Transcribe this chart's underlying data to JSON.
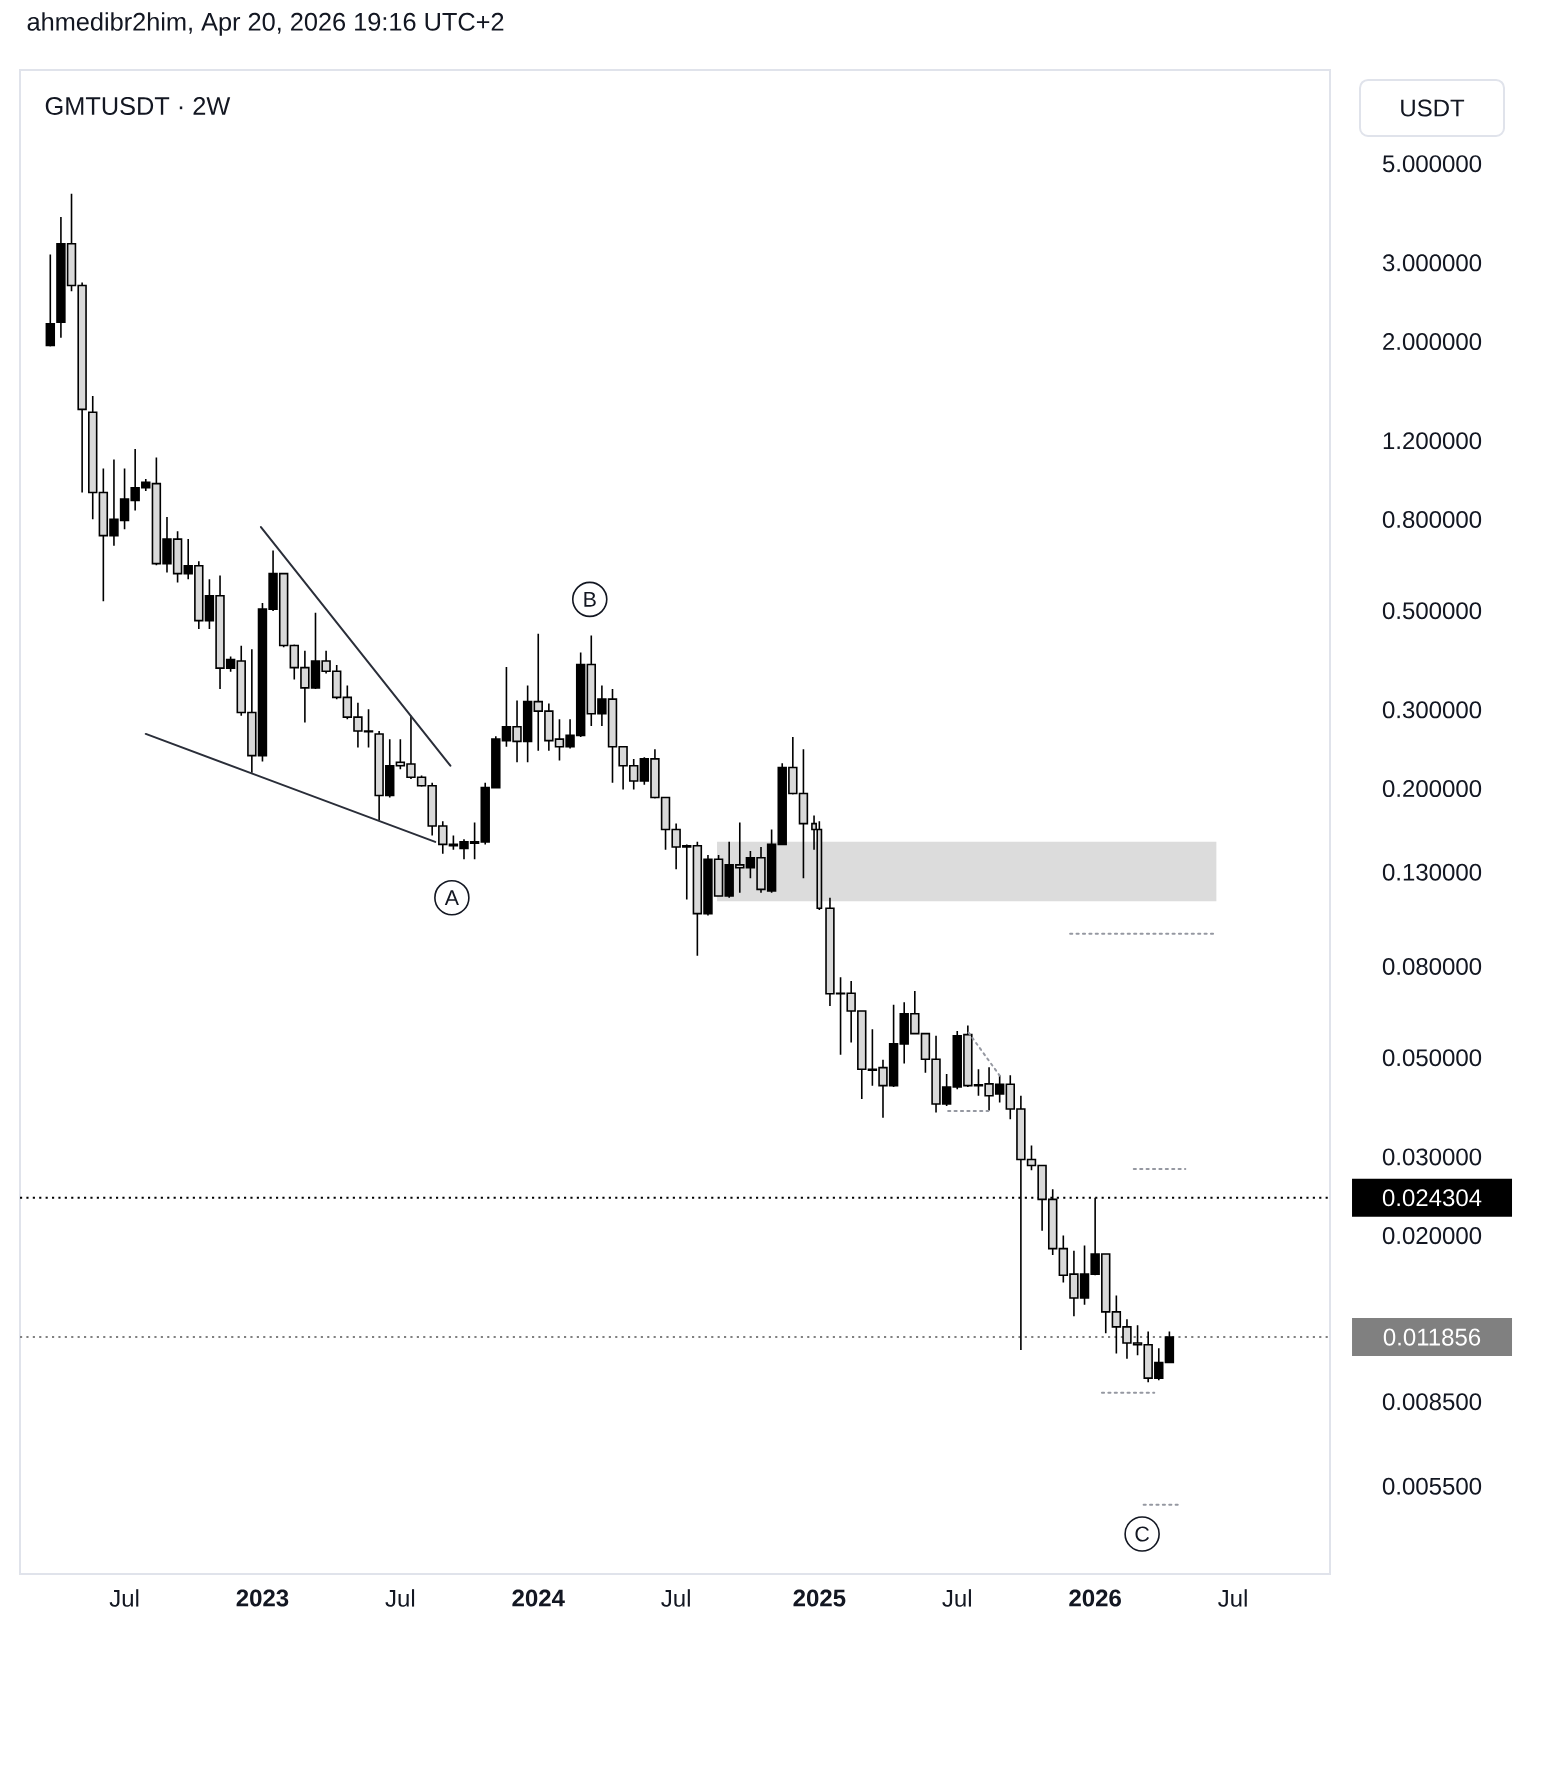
{
  "chart_data": {
    "type": "candlestick",
    "title": "GMTUSDT · 2W",
    "ylabel": "USDT",
    "annotations": [
      "ahmedibr2him, Apr 20, 2026 19:16 UTC+2",
      {
        "text": "A",
        "x": "2023-09-09",
        "y": 0.114
      },
      {
        "text": "B",
        "x": "2024-03-09",
        "y": 0.53
      },
      {
        "text": "C",
        "x": "2026-03-08",
        "y": 0.0043
      }
    ],
    "log": true,
    "xlim": [
      "2022-02-16",
      "2026-11-11"
    ],
    "xticks": [
      {
        "value": "2022-07-04",
        "label": "Jul"
      },
      {
        "value": "2023-01-02",
        "label": "2023"
      },
      {
        "value": "2023-07-03",
        "label": "Jul"
      },
      {
        "value": "2024-01-01",
        "label": "2024"
      },
      {
        "value": "2024-07-01",
        "label": "Jul"
      },
      {
        "value": "2025-01-06",
        "label": "2025"
      },
      {
        "value": "2025-07-07",
        "label": "Jul"
      },
      {
        "value": "2026-01-05",
        "label": "2026"
      },
      {
        "value": "2026-07-06",
        "label": "Jul"
      }
    ],
    "ylim": [
      0.0035,
      8.1
    ],
    "yticks": [
      {
        "value": 5,
        "label": "5.000000"
      },
      {
        "value": 3,
        "label": "3.000000"
      },
      {
        "value": 2,
        "label": "2.000000"
      },
      {
        "value": 1.2,
        "label": "1.200000"
      },
      {
        "value": 0.8,
        "label": "0.800000"
      },
      {
        "value": 0.5,
        "label": "0.500000"
      },
      {
        "value": 0.3,
        "label": "0.300000"
      },
      {
        "value": 0.2,
        "label": "0.200000"
      },
      {
        "value": 0.13,
        "label": "0.130000"
      },
      {
        "value": 0.08,
        "label": "0.080000"
      },
      {
        "value": 0.05,
        "label": "0.050000"
      },
      {
        "value": 0.03,
        "label": "0.030000"
      },
      {
        "value": 0.02,
        "label": "0.020000"
      },
      {
        "value": 0.0085,
        "label": "0.008500"
      },
      {
        "value": 0.0055,
        "label": "0.005500"
      }
    ],
    "ref_lines": [
      {
        "axis": "y",
        "value": 0.024304,
        "label": "0.024304",
        "color": "#000000",
        "line_style": "dotted"
      },
      {
        "axis": "y",
        "value": 0.011856,
        "label": "0.011856",
        "color": "#808080",
        "line_style": "dotted"
      }
    ],
    "series": [
      {
        "type": "area",
        "x": [
          "2024-08-24",
          "2026-06-14"
        ],
        "values": [
          null,
          null
        ],
        "lower": [
          0.112,
          0.112
        ],
        "upper": [
          0.152,
          0.152
        ],
        "color": "#dcdcdc"
      },
      {
        "color": "#000000",
        "x": [
          "2022-03-28",
          "2022-04-11",
          "2022-04-25",
          "2022-05-09",
          "2022-05-23",
          "2022-06-06",
          "2022-06-20",
          "2022-07-04",
          "2022-07-18",
          "2022-08-01",
          "2022-08-15",
          "2022-08-29",
          "2022-09-12",
          "2022-09-26",
          "2022-10-10",
          "2022-10-24",
          "2022-11-07",
          "2022-11-21",
          "2022-12-05",
          "2022-12-19",
          "2023-01-02",
          "2023-01-16",
          "2023-01-30",
          "2023-02-13",
          "2023-02-27",
          "2023-03-13",
          "2023-03-27",
          "2023-04-10",
          "2023-04-24",
          "2023-05-08",
          "2023-05-22",
          "2023-06-05",
          "2023-06-19",
          "2023-07-03",
          "2023-07-17",
          "2023-07-31",
          "2023-08-14",
          "2023-08-28",
          "2023-09-11",
          "2023-09-25",
          "2023-10-09",
          "2023-10-23",
          "2023-11-06",
          "2023-11-20",
          "2023-12-04",
          "2023-12-18",
          "2024-01-01",
          "2024-01-15",
          "2024-01-29",
          "2024-02-12",
          "2024-02-26",
          "2024-03-11",
          "2024-03-25",
          "2024-04-08",
          "2024-04-22",
          "2024-05-06",
          "2024-05-20",
          "2024-06-03",
          "2024-06-17",
          "2024-07-01",
          "2024-07-15",
          "2024-07-29",
          "2024-08-12",
          "2024-08-26",
          "2024-09-09",
          "2024-09-23",
          "2024-10-07",
          "2024-10-21",
          "2024-11-04",
          "2024-11-18",
          "2024-12-02",
          "2024-12-16",
          "2024-12-30",
          "2025-01-06",
          "2025-01-20",
          "2025-02-03",
          "2025-02-17",
          "2025-03-03",
          "2025-03-17",
          "2025-03-31",
          "2025-04-14",
          "2025-04-28",
          "2025-05-12",
          "2025-05-26",
          "2025-06-09",
          "2025-06-23",
          "2025-07-07",
          "2025-07-21",
          "2025-08-04",
          "2025-08-18",
          "2025-09-01",
          "2025-09-15",
          "2025-09-29",
          "2025-10-13",
          "2025-10-27",
          "2025-11-10",
          "2025-11-24",
          "2025-12-08",
          "2025-12-22",
          "2026-01-05",
          "2026-01-19",
          "2026-02-02",
          "2026-02-16",
          "2026-03-02",
          "2026-03-16",
          "2026-03-30",
          "2026-04-13"
        ],
        "ohlc": [
          [
            1.96,
            3.13,
            1.95,
            2.19
          ],
          [
            2.21,
            3.8,
            2.04,
            3.31
          ],
          [
            3.31,
            4.28,
            2.59,
            2.67
          ],
          [
            2.67,
            2.71,
            0.919,
            1.41
          ],
          [
            1.39,
            1.51,
            0.801,
            0.919
          ],
          [
            0.919,
            1.04,
            0.525,
            0.736
          ],
          [
            0.736,
            1.09,
            0.699,
            0.801
          ],
          [
            0.796,
            1.04,
            0.761,
            0.888
          ],
          [
            0.882,
            1.15,
            0.838,
            0.942
          ],
          [
            0.942,
            0.985,
            0.926,
            0.968
          ],
          [
            0.962,
            1.1,
            0.632,
            0.637
          ],
          [
            0.637,
            0.81,
            0.609,
            0.723
          ],
          [
            0.723,
            0.753,
            0.578,
            0.605
          ],
          [
            0.605,
            0.723,
            0.588,
            0.63
          ],
          [
            0.63,
            0.645,
            0.455,
            0.475
          ],
          [
            0.475,
            0.588,
            0.455,
            0.54
          ],
          [
            0.54,
            0.599,
            0.334,
            0.372
          ],
          [
            0.372,
            0.395,
            0.365,
            0.389
          ],
          [
            0.386,
            0.4175,
            0.291,
            0.296
          ],
          [
            0.296,
            0.41,
            0.217,
            0.237
          ],
          [
            0.237,
            0.52,
            0.23,
            0.504
          ],
          [
            0.504,
            0.682,
            0.499,
            0.605
          ],
          [
            0.605,
            0.607,
            0.414,
            0.418
          ],
          [
            0.418,
            0.42,
            0.351,
            0.373
          ],
          [
            0.373,
            0.407,
            0.281,
            0.336
          ],
          [
            0.336,
            0.495,
            0.334,
            0.386
          ],
          [
            0.386,
            0.407,
            0.362,
            0.366
          ],
          [
            0.366,
            0.378,
            0.317,
            0.32
          ],
          [
            0.32,
            0.34,
            0.286,
            0.289
          ],
          [
            0.289,
            0.311,
            0.247,
            0.269
          ],
          [
            0.269,
            0.301,
            0.247,
            0.268
          ],
          [
            0.265,
            0.269,
            0.17,
            0.193
          ],
          [
            0.193,
            0.258,
            0.191,
            0.225
          ],
          [
            0.229,
            0.258,
            0.221,
            0.225
          ],
          [
            0.227,
            0.291,
            0.21,
            0.212
          ],
          [
            0.212,
            0.214,
            0.202,
            0.203
          ],
          [
            0.203,
            0.206,
            0.157,
            0.165
          ],
          [
            0.165,
            0.169,
            0.143,
            0.15
          ],
          [
            0.149,
            0.157,
            0.146,
            0.15
          ],
          [
            0.147,
            0.154,
            0.139,
            0.152
          ],
          [
            0.151,
            0.168,
            0.139,
            0.152
          ],
          [
            0.152,
            0.206,
            0.15,
            0.201
          ],
          [
            0.201,
            0.262,
            0.2,
            0.258
          ],
          [
            0.256,
            0.374,
            0.248,
            0.275
          ],
          [
            0.275,
            0.315,
            0.229,
            0.255
          ],
          [
            0.255,
            0.34,
            0.229,
            0.313
          ],
          [
            0.313,
            0.444,
            0.243,
            0.298
          ],
          [
            0.298,
            0.31,
            0.243,
            0.256
          ],
          [
            0.258,
            0.286,
            0.231,
            0.248
          ],
          [
            0.248,
            0.286,
            0.246,
            0.263
          ],
          [
            0.263,
            0.403,
            0.261,
            0.379
          ],
          [
            0.379,
            0.44,
            0.276,
            0.294
          ],
          [
            0.294,
            0.34,
            0.276,
            0.317
          ],
          [
            0.317,
            0.334,
            0.206,
            0.248
          ],
          [
            0.248,
            0.248,
            0.199,
            0.225
          ],
          [
            0.225,
            0.233,
            0.199,
            0.208
          ],
          [
            0.208,
            0.235,
            0.204,
            0.233
          ],
          [
            0.233,
            0.245,
            0.19,
            0.191
          ],
          [
            0.191,
            0.191,
            0.146,
            0.162
          ],
          [
            0.162,
            0.167,
            0.132,
            0.148
          ],
          [
            0.149,
            0.15,
            0.113,
            0.148
          ],
          [
            0.149,
            0.152,
            0.0845,
            0.105
          ],
          [
            0.105,
            0.142,
            0.104,
            0.139
          ],
          [
            0.139,
            0.142,
            0.1145,
            0.115
          ],
          [
            0.115,
            0.152,
            0.114,
            0.135
          ],
          [
            0.135,
            0.168,
            0.117,
            0.133
          ],
          [
            0.133,
            0.145,
            0.126,
            0.14
          ],
          [
            0.14,
            0.148,
            0.117,
            0.119
          ],
          [
            0.118,
            0.162,
            0.117,
            0.15
          ],
          [
            0.15,
            0.228,
            0.15,
            0.223
          ],
          [
            0.223,
            0.261,
            0.194,
            0.195
          ],
          [
            0.195,
            0.245,
            0.126,
            0.167
          ],
          [
            0.167,
            0.174,
            0.146,
            0.162
          ],
          [
            0.162,
            0.169,
            0.107,
            0.108
          ],
          [
            0.108,
            0.114,
            0.0653,
            0.0695
          ],
          [
            0.0695,
            0.0757,
            0.0508,
            0.0697
          ],
          [
            0.0697,
            0.0742,
            0.0541,
            0.0636
          ],
          [
            0.0636,
            0.0636,
            0.0404,
            0.0471
          ],
          [
            0.0469,
            0.0579,
            0.0433,
            0.0471
          ],
          [
            0.0475,
            0.0495,
            0.0367,
            0.0433
          ],
          [
            0.0433,
            0.0657,
            0.043,
            0.0537
          ],
          [
            0.0537,
            0.0665,
            0.0485,
            0.0627
          ],
          [
            0.0627,
            0.0705,
            0.0564,
            0.0566
          ],
          [
            0.0566,
            0.0566,
            0.0463,
            0.0496
          ],
          [
            0.0496,
            0.056,
            0.0377,
            0.0394
          ],
          [
            0.0394,
            0.046,
            0.039,
            0.043
          ],
          [
            0.043,
            0.0574,
            0.0425,
            0.056
          ],
          [
            0.0563,
            0.059,
            0.043,
            0.0433
          ],
          [
            0.0433,
            0.0471,
            0.0411,
            0.0435
          ],
          [
            0.0437,
            0.0476,
            0.0381,
            0.0411
          ],
          [
            0.0415,
            0.0457,
            0.0397,
            0.0436
          ],
          [
            0.0436,
            0.0457,
            0.0364,
            0.0384
          ],
          [
            0.0384,
            0.0411,
            0.0111,
            0.0296
          ],
          [
            0.0296,
            0.0318,
            0.028,
            0.0287
          ],
          [
            0.0287,
            0.0287,
            0.0205,
            0.0241
          ],
          [
            0.0241,
            0.0254,
            0.0181,
            0.0187
          ],
          [
            0.0187,
            0.02,
            0.0157,
            0.0163
          ],
          [
            0.0164,
            0.0185,
            0.0132,
            0.0145
          ],
          [
            0.0145,
            0.019,
            0.014,
            0.0164
          ],
          [
            0.0164,
            0.024304,
            0.0163,
            0.0182
          ],
          [
            0.0182,
            0.0182,
            0.0121,
            0.0135
          ],
          [
            0.0135,
            0.0147,
            0.0109,
            0.0125
          ],
          [
            0.0125,
            0.013,
            0.0106,
            0.0115
          ],
          [
            0.0115,
            0.0126,
            0.0108,
            0.0114
          ],
          [
            0.0114,
            0.0122,
            0.0094,
            0.0096
          ],
          [
            0.0096,
            0.0112,
            0.0095,
            0.0104
          ],
          [
            0.0104,
            0.0122,
            0.0104,
            0.011856
          ]
        ],
        "colors": [
          "#000000",
          "#000000",
          "#d9d9d9",
          "#d9d9d9",
          "#d9d9d9",
          "#d9d9d9",
          "#000000",
          "#000000",
          "#000000",
          "#000000",
          "#d9d9d9",
          "#000000",
          "#d9d9d9",
          "#000000",
          "#d9d9d9",
          "#000000",
          "#d9d9d9",
          "#000000",
          "#d9d9d9",
          "#d9d9d9",
          "#000000",
          "#000000",
          "#d9d9d9",
          "#d9d9d9",
          "#d9d9d9",
          "#000000",
          "#d9d9d9",
          "#d9d9d9",
          "#d9d9d9",
          "#d9d9d9",
          "#d9d9d9",
          "#d9d9d9",
          "#000000",
          "#d9d9d9",
          "#d9d9d9",
          "#d9d9d9",
          "#d9d9d9",
          "#d9d9d9",
          "#000000",
          "#000000",
          "#000000",
          "#000000",
          "#000000",
          "#000000",
          "#d9d9d9",
          "#000000",
          "#d9d9d9",
          "#d9d9d9",
          "#d9d9d9",
          "#000000",
          "#000000",
          "#d9d9d9",
          "#000000",
          "#d9d9d9",
          "#d9d9d9",
          "#d9d9d9",
          "#000000",
          "#d9d9d9",
          "#d9d9d9",
          "#d9d9d9",
          "#d9d9d9",
          "#d9d9d9",
          "#000000",
          "#d9d9d9",
          "#000000",
          "#d9d9d9",
          "#000000",
          "#d9d9d9",
          "#000000",
          "#000000",
          "#d9d9d9",
          "#d9d9d9",
          "#d9d9d9",
          "#d9d9d9",
          "#d9d9d9",
          "#000000",
          "#d9d9d9",
          "#d9d9d9",
          "#000000",
          "#d9d9d9",
          "#000000",
          "#000000",
          "#d9d9d9",
          "#d9d9d9",
          "#d9d9d9",
          "#000000",
          "#000000",
          "#d9d9d9",
          "#000000",
          "#d9d9d9",
          "#000000",
          "#d9d9d9",
          "#d9d9d9",
          "#d9d9d9",
          "#d9d9d9",
          "#d9d9d9",
          "#d9d9d9",
          "#d9d9d9",
          "#000000",
          "#000000",
          "#d9d9d9",
          "#d9d9d9",
          "#d9d9d9",
          "#d9d9d9",
          "#d9d9d9",
          "#000000",
          "#000000"
        ]
      },
      {
        "type": "line",
        "x": [
          "2022-12-31",
          "2023-09-07"
        ],
        "values": [
          0.769,
          0.225
        ],
        "color": "#2a2e39",
        "line_style": "solid"
      },
      {
        "type": "line",
        "x": [
          "2022-08-01",
          "2023-08-18"
        ],
        "values": [
          0.265,
          0.152
        ],
        "color": "#2a2e39",
        "line_style": "solid"
      },
      {
        "type": "line",
        "x": [
          "2025-12-03",
          "2026-06-14"
        ],
        "values": [
          0.0947,
          0.0947
        ],
        "color": "#9598a1",
        "line_style": "dotted"
      },
      {
        "type": "line",
        "x": [
          "2026-02-25",
          "2026-05-04"
        ],
        "values": [
          0.0282,
          0.0282
        ],
        "color": "#9598a1",
        "line_style": "dotted"
      },
      {
        "type": "line",
        "x": [
          "2026-01-14",
          "2026-03-24"
        ],
        "values": [
          0.0089,
          0.0089
        ],
        "color": "#9598a1",
        "line_style": "dotted"
      },
      {
        "type": "line",
        "x": [
          "2026-03-10",
          "2026-04-24"
        ],
        "values": [
          0.005,
          0.005
        ],
        "color": "#9598a1",
        "line_style": "dotted"
      },
      {
        "type": "line",
        "x": [
          "2025-06-25",
          "2025-08-17"
        ],
        "values": [
          0.038,
          0.038
        ],
        "color": "#9598a1",
        "line_style": "dotted"
      },
      {
        "type": "line",
        "x": [
          "2025-07-22",
          "2025-09-01"
        ],
        "values": [
          0.0569,
          0.0456
        ],
        "color": "#9598a1",
        "line_style": "dotted"
      }
    ]
  }
}
